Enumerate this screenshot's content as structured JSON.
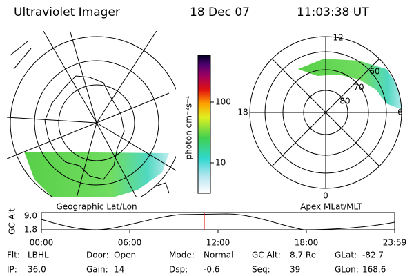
{
  "header": {
    "title": "Ultraviolet Imager",
    "date": "18 Dec 07",
    "time": "11:03:38 UT"
  },
  "colorbar": {
    "label": "photon cm⁻²s⁻¹",
    "ticks": [
      100,
      10
    ]
  },
  "left_map": {
    "caption": "Geographic Lat/Lon"
  },
  "right_map": {
    "caption": "Apex MLat/MLT",
    "hour_labels": [
      "12",
      "18",
      "0",
      "6"
    ],
    "lat_labels": [
      "60",
      "70",
      "80"
    ]
  },
  "altitude_plot": {
    "ylabel": "GC Alt",
    "yticks": [
      "9.0",
      "1.8"
    ],
    "xticks": [
      "00:00",
      "06:00",
      "12:00",
      "18:00",
      "23:59"
    ]
  },
  "info": [
    [
      {
        "label": "Flt:",
        "value": "LBHL"
      },
      {
        "label": "Door:",
        "value": "Open"
      },
      {
        "label": "Mode:",
        "value": "Normal"
      },
      {
        "label": "GC Alt:",
        "value": "8.7 Re"
      },
      {
        "label": "GLat:",
        "value": "-82.7"
      }
    ],
    [
      {
        "label": "IP:",
        "value": "36.0"
      },
      {
        "label": "Gain:",
        "value": "14"
      },
      {
        "label": "Dsp:",
        "value": "-0.6"
      },
      {
        "label": "Seq:",
        "value": "39"
      },
      {
        "label": "GLon:",
        "value": "168.6"
      }
    ]
  ]
}
